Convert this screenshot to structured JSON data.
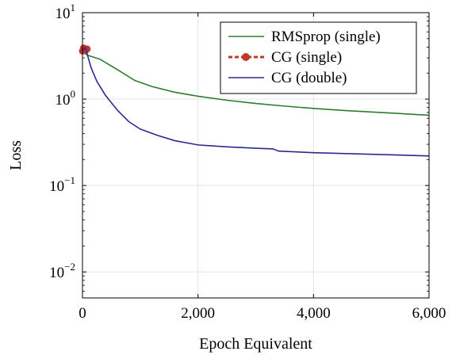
{
  "chart_data": {
    "type": "line",
    "title": "",
    "xlabel": "Epoch Equivalent",
    "ylabel": "Loss",
    "xlim": [
      0,
      6000
    ],
    "ylim": [
      0.005,
      10
    ],
    "yscale": "log",
    "grid": true,
    "legend_position": "top-right",
    "x_ticks": [
      {
        "value": 0,
        "label": "0"
      },
      {
        "value": 2000,
        "label": "2,000"
      },
      {
        "value": 4000,
        "label": "4,000"
      },
      {
        "value": 6000,
        "label": "6,000"
      }
    ],
    "y_ticks": [
      {
        "value": 0.01,
        "base": "10",
        "exp": "−2"
      },
      {
        "value": 0.1,
        "base": "10",
        "exp": "−1"
      },
      {
        "value": 1,
        "base": "10",
        "exp": "0"
      },
      {
        "value": 10,
        "base": "10",
        "exp": "1"
      }
    ],
    "series": [
      {
        "name": "RMSprop (single)",
        "color": "#2e7d2e",
        "style": "solid",
        "x": [
          0,
          100,
          300,
          600,
          900,
          1200,
          1600,
          2000,
          2500,
          3000,
          3500,
          4000,
          4500,
          5000,
          5500,
          6000
        ],
        "y": [
          3.5,
          3.2,
          2.9,
          2.2,
          1.65,
          1.4,
          1.2,
          1.08,
          0.97,
          0.89,
          0.83,
          0.78,
          0.74,
          0.71,
          0.68,
          0.65
        ]
      },
      {
        "name": "CG (single)",
        "color": "#c0392b",
        "style": "dashed-markers",
        "x": [
          0,
          20,
          40,
          60,
          80
        ],
        "y": [
          3.6,
          3.9,
          3.8,
          3.7,
          3.8
        ]
      },
      {
        "name": "CG (double)",
        "color": "#2b2b8f",
        "style": "solid",
        "x": [
          0,
          50,
          100,
          150,
          250,
          400,
          600,
          800,
          1000,
          1300,
          1600,
          2000,
          2500,
          3000,
          3300,
          3400,
          4000,
          4500,
          5000,
          5500,
          6000
        ],
        "y": [
          3.6,
          4.0,
          3.0,
          2.3,
          1.6,
          1.1,
          0.75,
          0.55,
          0.45,
          0.38,
          0.33,
          0.295,
          0.28,
          0.27,
          0.265,
          0.25,
          0.24,
          0.235,
          0.23,
          0.225,
          0.22
        ]
      }
    ]
  }
}
